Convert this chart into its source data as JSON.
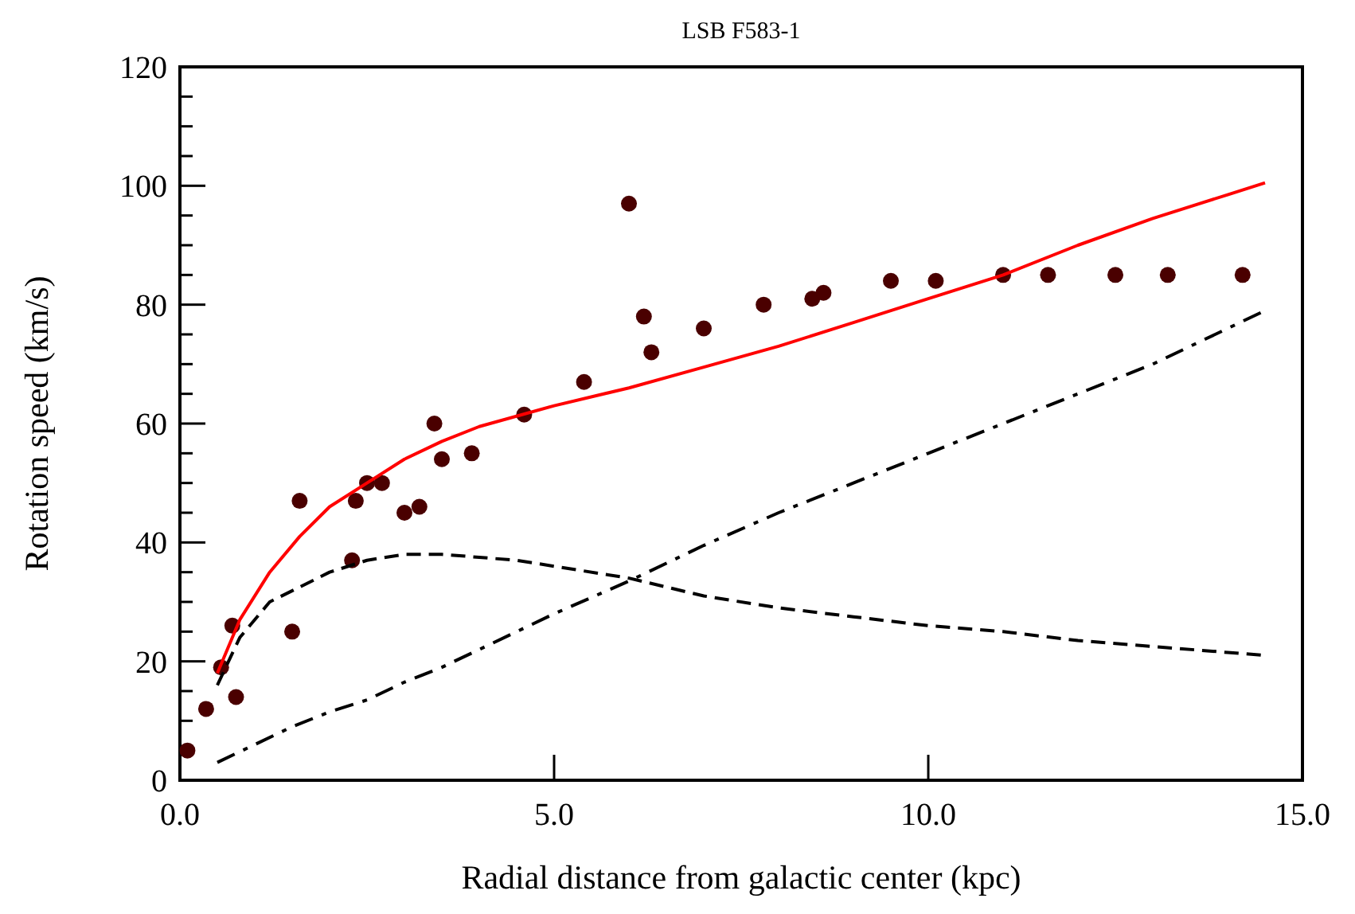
{
  "chart_data": {
    "type": "line",
    "title": "LSB F583-1",
    "xlabel": "Radial distance from galactic center (kpc)",
    "ylabel": "Rotation speed (km/s)",
    "xlim": [
      0,
      15
    ],
    "ylim": [
      0,
      120
    ],
    "xticks": [
      {
        "value": 0,
        "label": "0.0"
      },
      {
        "value": 5,
        "label": "5.0"
      },
      {
        "value": 10,
        "label": "10.0"
      },
      {
        "value": 15,
        "label": "15.0"
      }
    ],
    "yticks": [
      0,
      {
        "value": 5,
        "label": null
      },
      {
        "value": 10,
        "label": null
      },
      {
        "value": 15,
        "label": null
      },
      20,
      {
        "value": 25,
        "label": null
      },
      {
        "value": 30,
        "label": null
      },
      {
        "value": 35,
        "label": null
      },
      40,
      {
        "value": 45,
        "label": null
      },
      {
        "value": 50,
        "label": null
      },
      {
        "value": 55,
        "label": null
      },
      60,
      {
        "value": 65,
        "label": null
      },
      {
        "value": 70,
        "label": null
      },
      {
        "value": 75,
        "label": null
      },
      80,
      {
        "value": 85,
        "label": null
      },
      {
        "value": 90,
        "label": null
      },
      {
        "value": 95,
        "label": null
      },
      100,
      {
        "value": 105,
        "label": null
      },
      {
        "value": 110,
        "label": null
      },
      {
        "value": 115,
        "label": null
      },
      120
    ],
    "grid": false,
    "series": [
      {
        "type": "scatter",
        "marker": "circle",
        "color": "#4a0000",
        "x": [
          0.1,
          0.35,
          0.55,
          0.7,
          0.75,
          1.5,
          1.6,
          2.3,
          2.35,
          2.5,
          2.7,
          3.0,
          3.2,
          3.4,
          3.5,
          3.9,
          4.6,
          5.4,
          6.0,
          6.2,
          6.3,
          7.0,
          7.8,
          8.45,
          8.6,
          9.5,
          10.1,
          11.0,
          11.6,
          12.5,
          13.2,
          14.2
        ],
        "values": [
          5,
          12,
          19,
          26,
          14,
          25,
          47,
          37,
          47,
          50,
          50,
          45,
          46,
          60,
          54,
          55,
          61.5,
          67,
          97,
          78,
          72,
          76,
          80,
          81,
          82,
          84,
          84,
          85,
          85,
          85,
          85,
          85
        ]
      },
      {
        "line_style": "solid",
        "color": "#ff0000",
        "x": [
          0.5,
          0.8,
          1.2,
          1.6,
          2.0,
          2.5,
          3.0,
          3.5,
          4.0,
          5.0,
          6.0,
          7.0,
          8.0,
          9.0,
          10.0,
          11.0,
          12.0,
          13.0,
          14.0,
          14.5
        ],
        "values": [
          18,
          27,
          35,
          41,
          46,
          50,
          54,
          57,
          59.5,
          63,
          66,
          69.5,
          73,
          77,
          81,
          85,
          90,
          94.5,
          98.5,
          100.5
        ]
      },
      {
        "line_style": "dashed",
        "color": "#000000",
        "x": [
          0.5,
          0.8,
          1.2,
          1.6,
          2.0,
          2.5,
          3.0,
          3.5,
          4.0,
          4.5,
          5.0,
          6.0,
          7.0,
          8.0,
          9.0,
          10.0,
          11.0,
          12.0,
          13.0,
          14.0,
          14.5
        ],
        "values": [
          16,
          24,
          30,
          32.5,
          35,
          37,
          38,
          38,
          37.5,
          37,
          36,
          34,
          31,
          29,
          27.5,
          26,
          25,
          23.5,
          22.5,
          21.5,
          21
        ]
      },
      {
        "line_style": "dashdot",
        "color": "#000000",
        "x": [
          0.5,
          1.0,
          1.5,
          2.0,
          2.5,
          3.0,
          3.5,
          4.0,
          4.5,
          5.0,
          6.0,
          7.0,
          8.0,
          9.0,
          10.0,
          11.0,
          12.0,
          13.0,
          14.0,
          14.5
        ],
        "values": [
          3,
          6,
          9,
          11.5,
          13.5,
          16.5,
          19,
          22,
          25,
          28,
          33.5,
          39.5,
          45,
          50,
          55,
          60,
          65,
          70,
          76,
          79
        ]
      }
    ]
  }
}
